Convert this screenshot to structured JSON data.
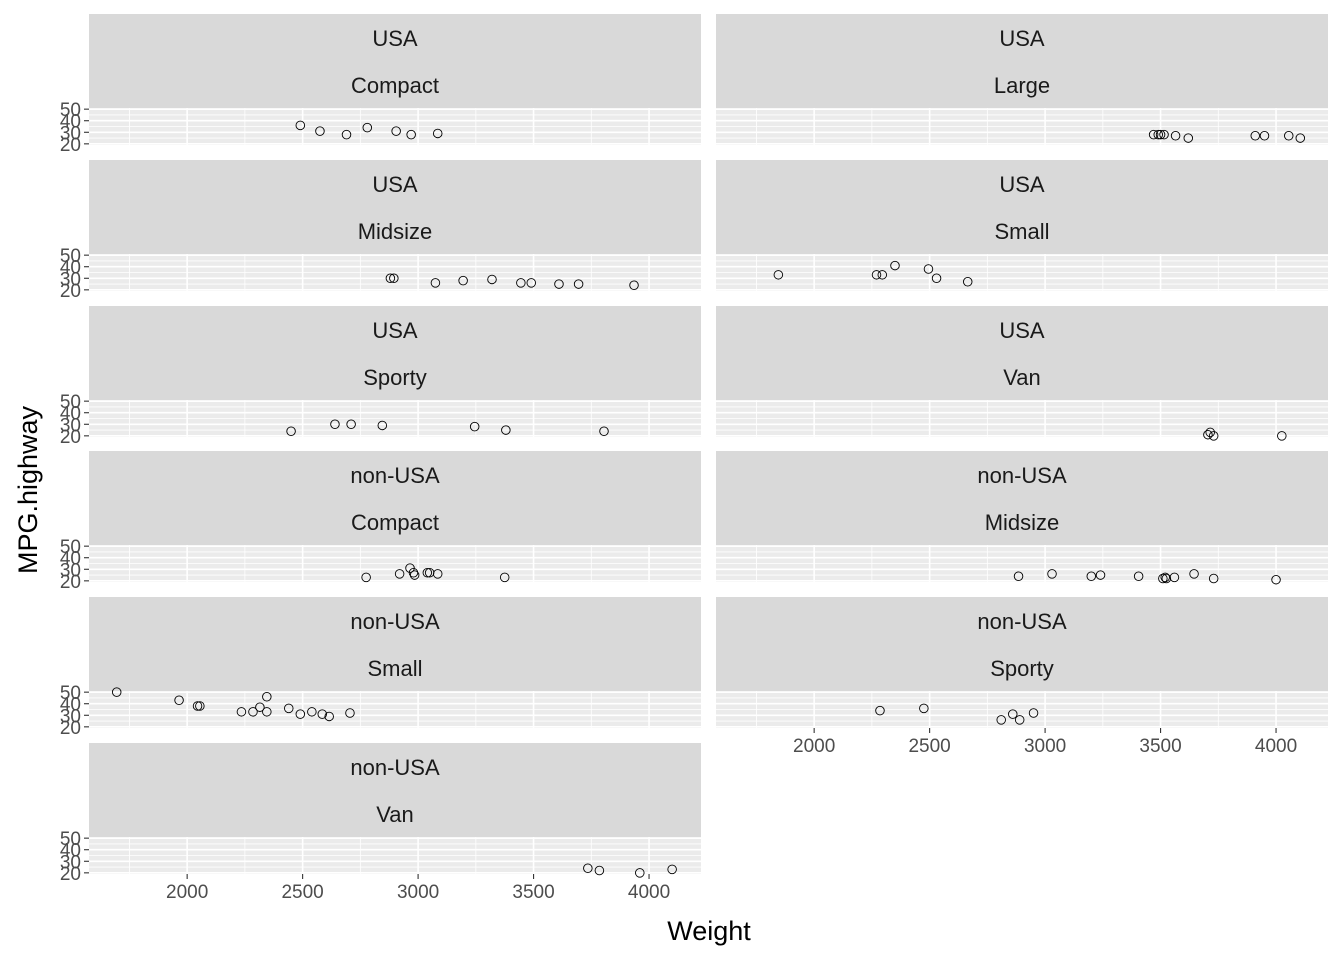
{
  "chart_data": {
    "type": "scatter",
    "xlabel": "Weight",
    "ylabel": "MPG.highway",
    "xlim": [
      1575,
      4225
    ],
    "ylim": [
      19,
      51
    ],
    "x_ticks": [
      2000,
      2500,
      3000,
      3500,
      4000
    ],
    "y_ticks": [
      20,
      30,
      40,
      50
    ],
    "grid": true,
    "layout": "facet_wrap, 2 columns, 7 rows",
    "colors": {
      "strip": "#d9d9d9",
      "panel": "#ebebeb",
      "grid": "#ffffff",
      "point_stroke": "#000000",
      "tick_text": "#4d4d4d"
    },
    "panels": [
      {
        "origin": "USA",
        "type": "Compact",
        "points": [
          {
            "x": 2490,
            "y": 36
          },
          {
            "x": 2575,
            "y": 31
          },
          {
            "x": 2690,
            "y": 28
          },
          {
            "x": 2780,
            "y": 34
          },
          {
            "x": 2905,
            "y": 31
          },
          {
            "x": 2970,
            "y": 28
          },
          {
            "x": 3085,
            "y": 29
          }
        ]
      },
      {
        "origin": "USA",
        "type": "Large",
        "points": [
          {
            "x": 3470,
            "y": 28
          },
          {
            "x": 3490,
            "y": 28
          },
          {
            "x": 3500,
            "y": 28
          },
          {
            "x": 3515,
            "y": 28
          },
          {
            "x": 3565,
            "y": 27
          },
          {
            "x": 3620,
            "y": 25
          },
          {
            "x": 3910,
            "y": 27
          },
          {
            "x": 3950,
            "y": 27
          },
          {
            "x": 4055,
            "y": 27
          },
          {
            "x": 4105,
            "y": 25
          }
        ]
      },
      {
        "origin": "USA",
        "type": "Midsize",
        "points": [
          {
            "x": 2880,
            "y": 30
          },
          {
            "x": 2895,
            "y": 30
          },
          {
            "x": 3075,
            "y": 26
          },
          {
            "x": 3195,
            "y": 28
          },
          {
            "x": 3320,
            "y": 29
          },
          {
            "x": 3445,
            "y": 26
          },
          {
            "x": 3490,
            "y": 26
          },
          {
            "x": 3610,
            "y": 25
          },
          {
            "x": 3695,
            "y": 25
          },
          {
            "x": 3935,
            "y": 24
          }
        ]
      },
      {
        "origin": "USA",
        "type": "Small",
        "points": [
          {
            "x": 1845,
            "y": 33
          },
          {
            "x": 2270,
            "y": 33
          },
          {
            "x": 2295,
            "y": 33
          },
          {
            "x": 2350,
            "y": 41
          },
          {
            "x": 2495,
            "y": 38
          },
          {
            "x": 2530,
            "y": 30
          },
          {
            "x": 2665,
            "y": 27
          }
        ]
      },
      {
        "origin": "USA",
        "type": "Sporty",
        "points": [
          {
            "x": 2450,
            "y": 24
          },
          {
            "x": 2640,
            "y": 30
          },
          {
            "x": 2710,
            "y": 30
          },
          {
            "x": 2845,
            "y": 29
          },
          {
            "x": 3245,
            "y": 28
          },
          {
            "x": 3380,
            "y": 25
          },
          {
            "x": 3805,
            "y": 24
          }
        ]
      },
      {
        "origin": "USA",
        "type": "Van",
        "points": [
          {
            "x": 3705,
            "y": 21
          },
          {
            "x": 3715,
            "y": 23
          },
          {
            "x": 3730,
            "y": 20
          },
          {
            "x": 4025,
            "y": 20
          }
        ]
      },
      {
        "origin": "non-USA",
        "type": "Compact",
        "points": [
          {
            "x": 2775,
            "y": 23
          },
          {
            "x": 2920,
            "y": 26
          },
          {
            "x": 2965,
            "y": 31
          },
          {
            "x": 2980,
            "y": 27
          },
          {
            "x": 2985,
            "y": 25
          },
          {
            "x": 3040,
            "y": 27
          },
          {
            "x": 3050,
            "y": 27
          },
          {
            "x": 3085,
            "y": 26
          },
          {
            "x": 3375,
            "y": 23
          }
        ]
      },
      {
        "origin": "non-USA",
        "type": "Midsize",
        "points": [
          {
            "x": 2885,
            "y": 24
          },
          {
            "x": 3030,
            "y": 26
          },
          {
            "x": 3200,
            "y": 24
          },
          {
            "x": 3240,
            "y": 25
          },
          {
            "x": 3405,
            "y": 24
          },
          {
            "x": 3510,
            "y": 22
          },
          {
            "x": 3520,
            "y": 23
          },
          {
            "x": 3525,
            "y": 22
          },
          {
            "x": 3560,
            "y": 23
          },
          {
            "x": 3645,
            "y": 26
          },
          {
            "x": 3730,
            "y": 22
          },
          {
            "x": 4000,
            "y": 21
          }
        ]
      },
      {
        "origin": "non-USA",
        "type": "Small",
        "points": [
          {
            "x": 1695,
            "y": 50
          },
          {
            "x": 1965,
            "y": 43
          },
          {
            "x": 2045,
            "y": 38
          },
          {
            "x": 2055,
            "y": 38
          },
          {
            "x": 2235,
            "y": 33
          },
          {
            "x": 2285,
            "y": 33
          },
          {
            "x": 2315,
            "y": 37
          },
          {
            "x": 2345,
            "y": 33
          },
          {
            "x": 2345,
            "y": 46
          },
          {
            "x": 2440,
            "y": 36
          },
          {
            "x": 2490,
            "y": 31
          },
          {
            "x": 2540,
            "y": 33
          },
          {
            "x": 2585,
            "y": 31
          },
          {
            "x": 2615,
            "y": 29
          },
          {
            "x": 2705,
            "y": 32
          }
        ]
      },
      {
        "origin": "non-USA",
        "type": "Sporty",
        "points": [
          {
            "x": 2285,
            "y": 34
          },
          {
            "x": 2475,
            "y": 36
          },
          {
            "x": 2810,
            "y": 26
          },
          {
            "x": 2860,
            "y": 31
          },
          {
            "x": 2890,
            "y": 26
          },
          {
            "x": 2950,
            "y": 32
          }
        ]
      },
      {
        "origin": "non-USA",
        "type": "Van",
        "points": [
          {
            "x": 3735,
            "y": 24
          },
          {
            "x": 3785,
            "y": 22
          },
          {
            "x": 3960,
            "y": 20
          },
          {
            "x": 4100,
            "y": 23
          }
        ]
      }
    ]
  }
}
